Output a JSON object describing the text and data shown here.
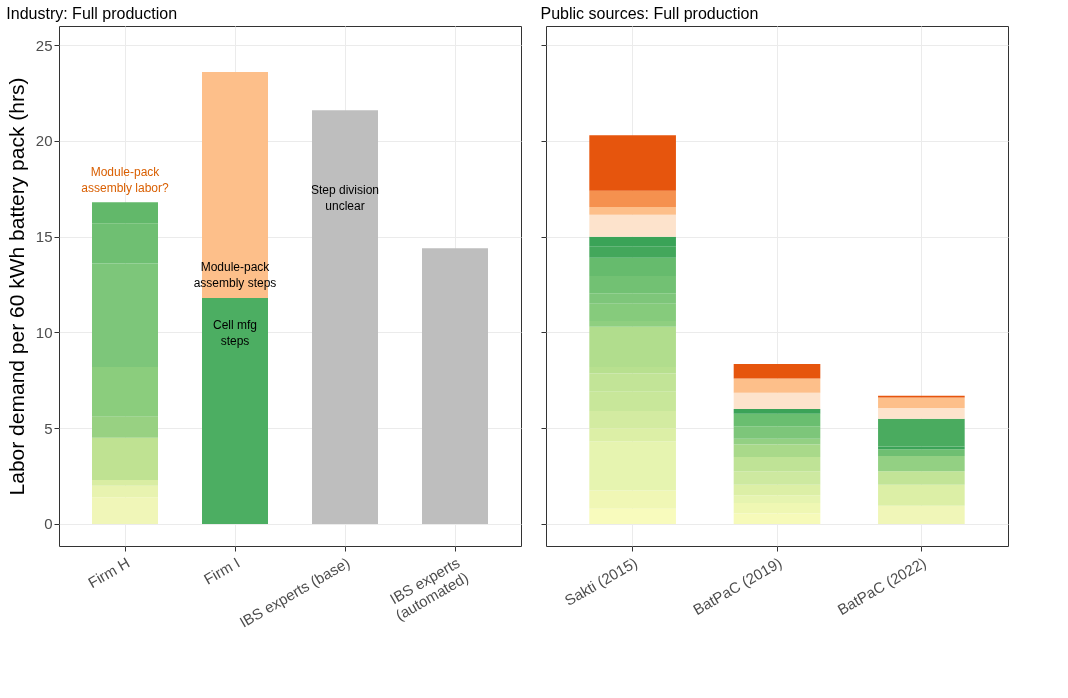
{
  "chart_data": [
    {
      "type": "bar",
      "stacked": true,
      "title": "Industry: Full production",
      "ylabel": "Labor demand per 60 kWh battery pack (hrs)",
      "categories": [
        "Firm H",
        "Firm I",
        "IBS experts (base)",
        "IBS experts\n(automated)"
      ],
      "ylim": [
        -1.15,
        26
      ],
      "yticks": [
        0,
        5,
        10,
        15,
        20,
        25
      ],
      "grid": true,
      "series": [
        {
          "values": [
            1.4,
            11.8,
            21.6,
            14.4
          ],
          "colors": [
            "#f0f6b8",
            "#4cae62",
            "#bebebe",
            "#bebebe"
          ]
        },
        {
          "values": [
            0.6,
            11.8,
            null,
            null
          ],
          "colors": [
            "#e8f3b0",
            "#fdbf8a",
            null,
            null
          ]
        },
        {
          "values": [
            0.3,
            null,
            null,
            null
          ],
          "colors": [
            "#d9eda3",
            null,
            null,
            null
          ]
        },
        {
          "values": [
            2.2,
            null,
            null,
            null
          ],
          "colors": [
            "#bfe292",
            null,
            null,
            null
          ]
        },
        {
          "values": [
            1.1,
            null,
            null,
            null
          ],
          "colors": [
            "#98d182",
            null,
            null,
            null
          ]
        },
        {
          "values": [
            2.6,
            null,
            null,
            null
          ],
          "colors": [
            "#8bcd7d",
            null,
            null,
            null
          ]
        },
        {
          "values": [
            5.4,
            null,
            null,
            null
          ],
          "colors": [
            "#7dc67a",
            null,
            null,
            null
          ]
        },
        {
          "values": [
            2.1,
            null,
            null,
            null
          ],
          "colors": [
            "#6fbf72",
            null,
            null,
            null
          ]
        },
        {
          "values": [
            1.1,
            null,
            null,
            null
          ],
          "colors": [
            "#62b86a",
            null,
            null,
            null
          ]
        }
      ],
      "annotations": [
        "Module-pack\nassembly labor?",
        "Module-pack\nassembly steps",
        "Cell mfg\nsteps",
        "Step division\nunclear"
      ]
    },
    {
      "type": "bar",
      "stacked": true,
      "title": "Public sources: Full production",
      "categories": [
        "Sakti (2015)",
        "BatPaC (2019)",
        "BatPaC (2022)"
      ],
      "ylim": [
        -1.15,
        26
      ],
      "yticks": [
        0,
        5,
        10,
        15,
        20,
        25
      ],
      "grid": true,
      "tick_labels": "x",
      "series": [
        {
          "values": [
            0.8,
            0.55,
            0.95
          ],
          "colors": [
            "#f8fbbd",
            "#f6fab9",
            "#f0f6b8"
          ]
        },
        {
          "values": [
            0.95,
            0.55,
            1.1
          ],
          "colors": [
            "#f0f7b5",
            "#eff7b3",
            "#dcefa6"
          ]
        },
        {
          "values": [
            2.55,
            0.4,
            0.7
          ],
          "colors": [
            "#e6f4b0",
            "#e6f4b0",
            "#c2e497"
          ]
        },
        {
          "values": [
            0.7,
            0.55,
            0.8
          ],
          "colors": [
            "#dcefa6",
            "#dcefa6",
            "#93d083"
          ]
        },
        {
          "values": [
            0.9,
            0.7,
            0.35
          ],
          "colors": [
            "#d3eba1",
            "#cde9a0",
            "#6fbf72"
          ]
        },
        {
          "values": [
            1.0,
            0.75,
            0.15
          ],
          "colors": [
            "#c8e79a",
            "#bfe396",
            "#3ba358"
          ]
        },
        {
          "values": [
            0.95,
            0.65,
            1.45
          ],
          "colors": [
            "#c2e497",
            "#a9d98a",
            "#4aab5f"
          ]
        },
        {
          "values": [
            0.35,
            0.3,
            0.55
          ],
          "colors": [
            "#b8e08f",
            "#93d083",
            "#fde3cc"
          ]
        },
        {
          "values": [
            2.1,
            0.65,
            0.55
          ],
          "colors": [
            "#b1dd8d",
            "#7dc67a",
            "#fdbf8a"
          ]
        },
        {
          "values": [
            0.3,
            0.65,
            0.1
          ],
          "colors": [
            "#8fcf80",
            "#6abe70",
            "#e6550d"
          ]
        },
        {
          "values": [
            0.9,
            0.25,
            null
          ],
          "colors": [
            "#86cb7c",
            "#3ba358",
            null
          ]
        },
        {
          "values": [
            0.55,
            0.85,
            null
          ],
          "colors": [
            "#7ec67a",
            "#fde3cc",
            null
          ]
        },
        {
          "values": [
            0.9,
            0.75,
            null
          ],
          "colors": [
            "#72c173",
            "#fdbf8a",
            null
          ]
        },
        {
          "values": [
            0.95,
            0.75,
            null
          ],
          "colors": [
            "#66bb6d",
            "#e6550d",
            null
          ]
        },
        {
          "values": [
            0.6,
            null,
            null
          ],
          "colors": [
            "#43a75b",
            null,
            null
          ]
        },
        {
          "values": [
            0.5,
            null,
            null
          ],
          "colors": [
            "#3aa357",
            null,
            null
          ]
        },
        {
          "values": [
            1.15,
            null,
            null
          ],
          "colors": [
            "#fde3cc",
            null,
            null
          ]
        },
        {
          "values": [
            0.4,
            null,
            null
          ],
          "colors": [
            "#fdbf8a",
            null,
            null
          ]
        },
        {
          "values": [
            0.85,
            null,
            null
          ],
          "colors": [
            "#f5914f",
            null,
            null
          ]
        },
        {
          "values": [
            2.9,
            null,
            null
          ],
          "colors": [
            "#e6550d",
            null,
            null
          ]
        }
      ]
    }
  ]
}
